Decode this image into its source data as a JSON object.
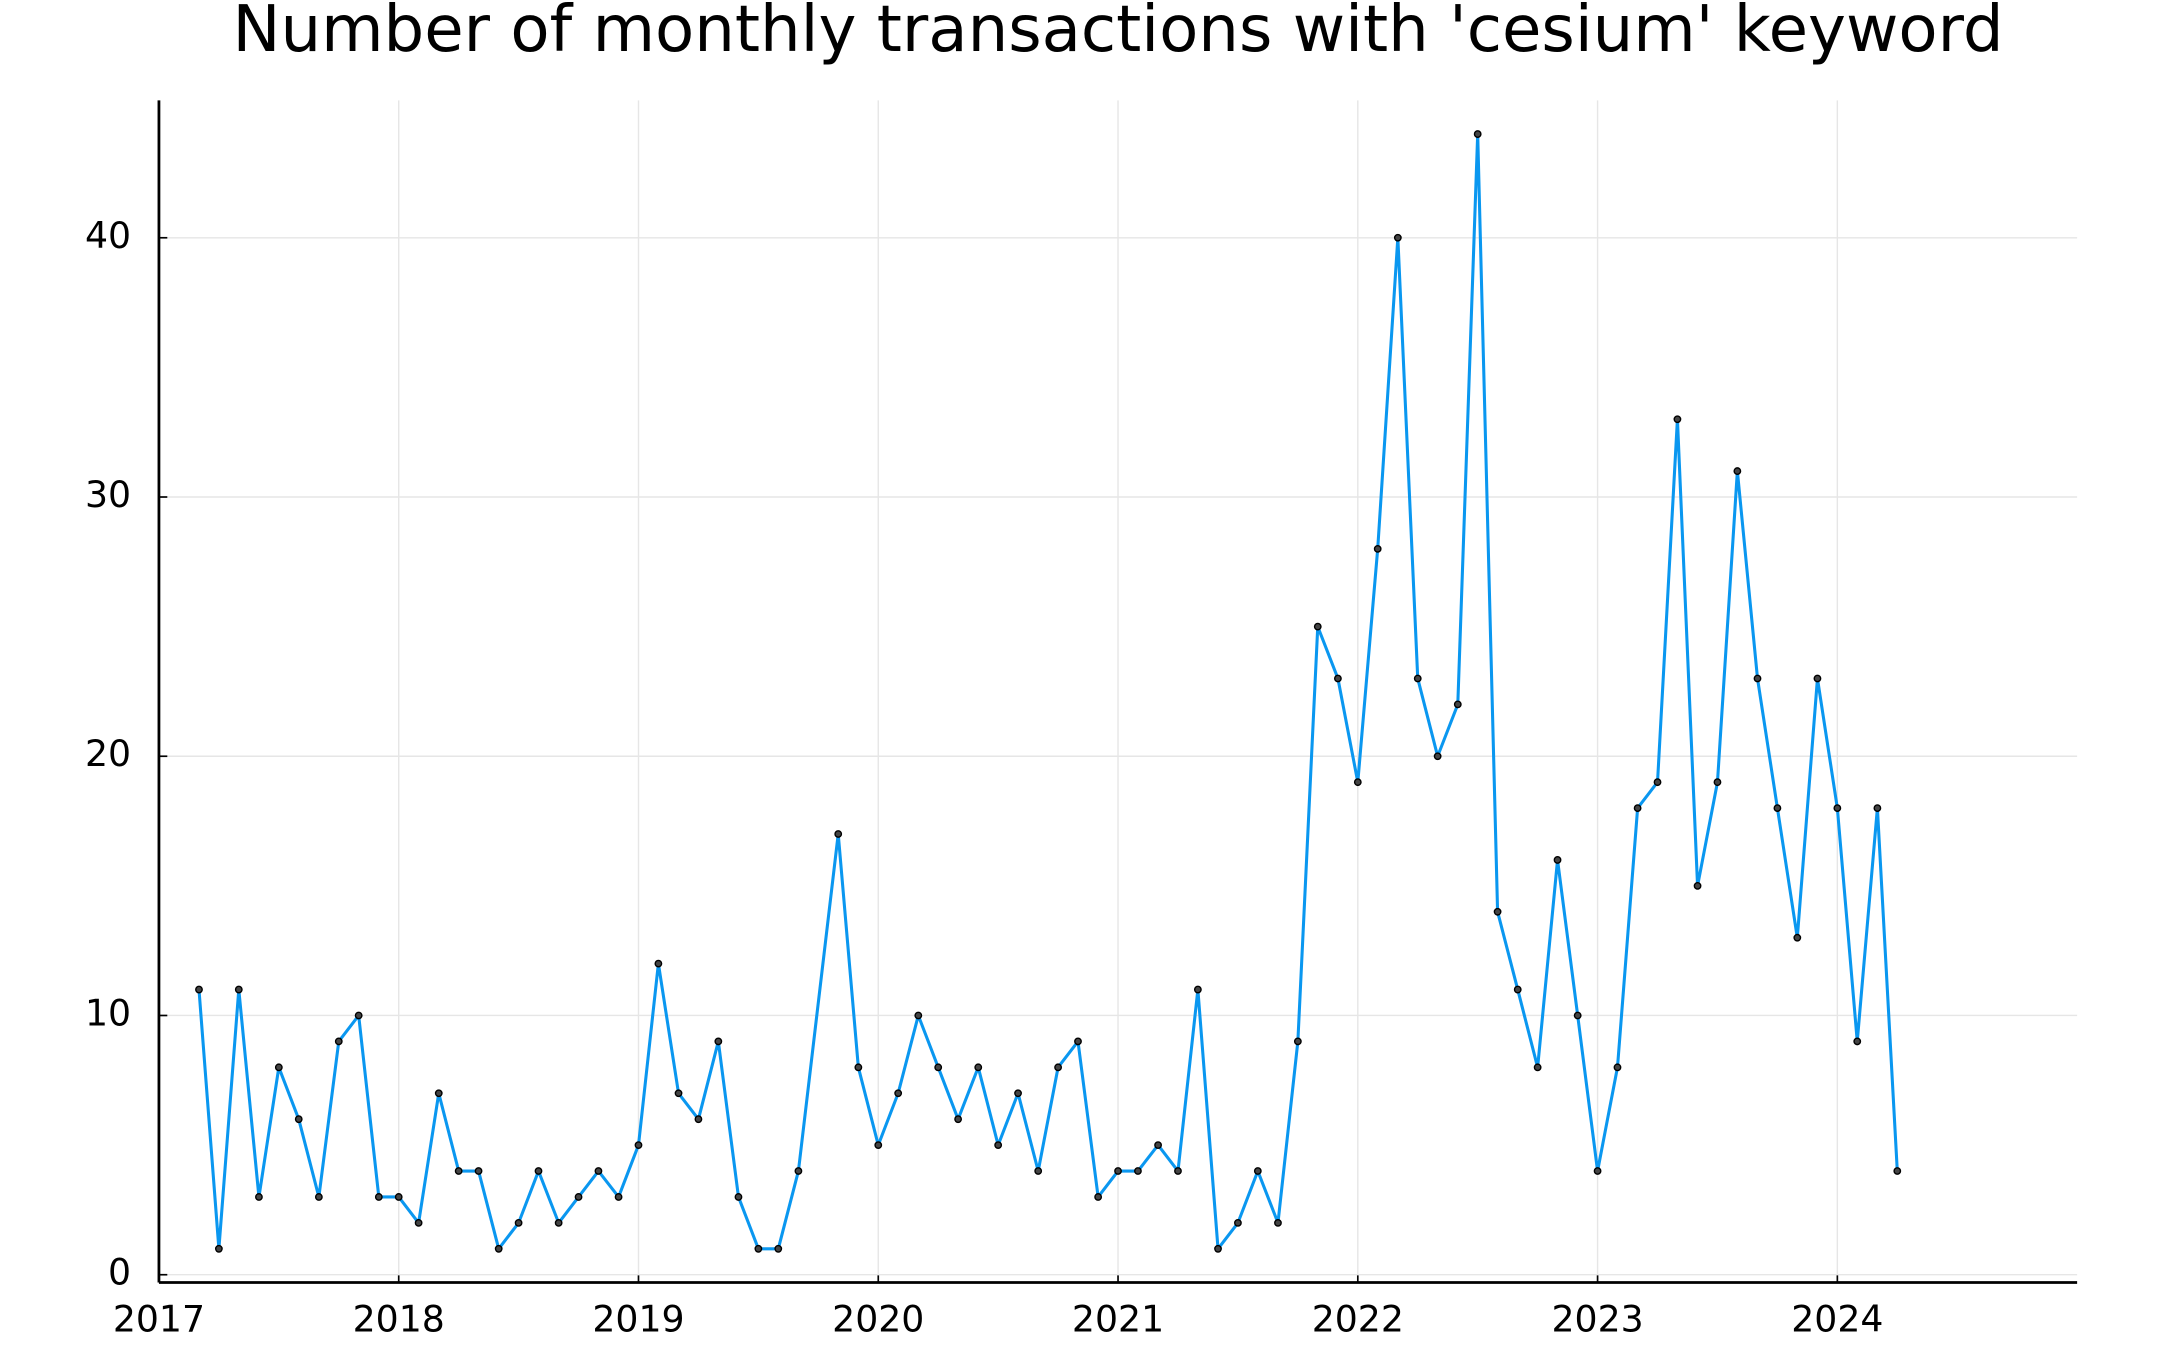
{
  "chart_data": {
    "type": "line",
    "title": "Number of monthly transactions with 'cesium' keyword",
    "x": [
      2017.167,
      2017.25,
      2017.333,
      2017.417,
      2017.5,
      2017.583,
      2017.667,
      2017.75,
      2017.833,
      2017.917,
      2018,
      2018.083,
      2018.167,
      2018.25,
      2018.333,
      2018.417,
      2018.5,
      2018.583,
      2018.667,
      2018.75,
      2018.833,
      2018.917,
      2019,
      2019.083,
      2019.167,
      2019.25,
      2019.333,
      2019.417,
      2019.5,
      2019.583,
      2019.667,
      2019.833,
      2019.917,
      2020,
      2020.083,
      2020.167,
      2020.25,
      2020.333,
      2020.417,
      2020.5,
      2020.583,
      2020.667,
      2020.75,
      2020.833,
      2020.917,
      2021,
      2021.083,
      2021.167,
      2021.25,
      2021.333,
      2021.417,
      2021.5,
      2021.583,
      2021.667,
      2021.75,
      2021.833,
      2021.917,
      2022,
      2022.083,
      2022.167,
      2022.25,
      2022.333,
      2022.417,
      2022.5,
      2022.583,
      2022.667,
      2022.75,
      2022.833,
      2022.917,
      2023,
      2023.083,
      2023.167,
      2023.25,
      2023.333,
      2023.417,
      2023.5,
      2023.583,
      2023.667,
      2023.75,
      2023.833,
      2023.917,
      2024,
      2024.083,
      2024.167,
      2024.25
    ],
    "values": [
      11,
      1,
      11,
      3,
      8,
      6,
      3,
      9,
      10,
      3,
      3,
      2,
      7,
      4,
      4,
      1,
      2,
      4,
      2,
      3,
      4,
      3,
      5,
      12,
      7,
      6,
      9,
      3,
      1,
      1,
      4,
      17,
      8,
      5,
      7,
      10,
      8,
      6,
      8,
      5,
      7,
      4,
      8,
      9,
      3,
      4,
      4,
      5,
      4,
      11,
      1,
      2,
      4,
      2,
      9,
      25,
      23,
      19,
      28,
      40,
      23,
      20,
      22,
      44,
      14,
      11,
      8,
      16,
      10,
      4,
      8,
      18,
      19,
      33,
      15,
      19,
      31,
      23,
      18,
      13,
      23,
      18,
      9,
      18,
      4
    ],
    "color": "#0a97f0",
    "xlim": [
      2017,
      2025
    ],
    "xticks": [
      2017,
      2018,
      2019,
      2020,
      2021,
      2022,
      2023,
      2024
    ],
    "ylim": [
      -0.3,
      45.3
    ],
    "yticks": [
      0,
      10,
      20,
      30,
      40
    ],
    "grid": true
  }
}
